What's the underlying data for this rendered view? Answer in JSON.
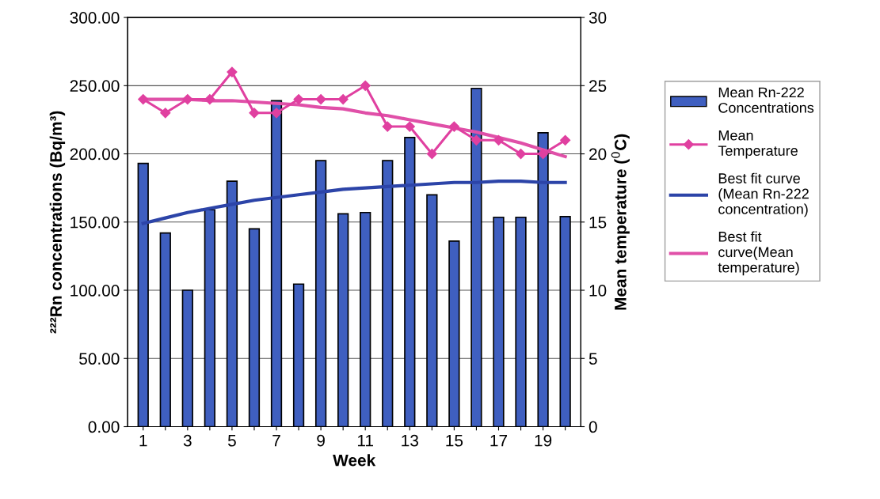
{
  "chart_data": {
    "type": "bar",
    "xlabel": "Week",
    "ylabel": "²²²Rn concentrations (Bq/m³)",
    "y2label": "Mean temperature ($^{0}$C)",
    "categories": [
      "1",
      null,
      "3",
      null,
      "5",
      null,
      "7",
      null,
      "9",
      null,
      "11",
      null,
      "13",
      null,
      "15",
      null,
      "17",
      null,
      "19",
      null
    ],
    "series": [
      {
        "name": "Mean Rn-222\nConcentrations",
        "color": "#3f5fc0",
        "values": [
          193,
          142,
          100,
          159,
          180,
          145,
          239,
          104.5,
          195,
          156,
          157,
          195,
          212,
          170,
          136,
          248,
          153.5,
          153.5,
          215.5,
          154
        ]
      },
      {
        "name": "Mean\nTemperature",
        "type": "line",
        "axis": "y2",
        "color": "#e040a0",
        "marker": "diamond",
        "values": [
          24,
          23,
          24,
          24,
          26,
          23,
          23,
          24,
          24,
          24,
          25,
          22,
          22,
          20,
          22,
          21,
          21,
          20,
          20,
          21
        ]
      },
      {
        "name": "Best fit curve\n(Mean Rn-222\nconcentration)",
        "type": "line",
        "color": "#2c44a8",
        "values": [
          149,
          153,
          157,
          160,
          163,
          166,
          168,
          170,
          172,
          174,
          175,
          176,
          177,
          178,
          179,
          179,
          180,
          180,
          179,
          179
        ]
      },
      {
        "name": "Best fit\ncurve(Mean\ntemperature)",
        "type": "line",
        "axis": "y2",
        "color": "#e050a8",
        "values": [
          24.0,
          24.0,
          24.0,
          23.9,
          23.9,
          23.8,
          23.7,
          23.6,
          23.4,
          23.3,
          23.0,
          22.8,
          22.5,
          22.2,
          21.9,
          21.6,
          21.2,
          20.8,
          20.3,
          19.8
        ]
      }
    ],
    "ylim": [
      0,
      300
    ],
    "yticks": [
      {
        "value": 0,
        "label": "0.00"
      },
      {
        "value": 50,
        "label": "50.00"
      },
      {
        "value": 100,
        "label": "100.00"
      },
      {
        "value": 150,
        "label": "150.00"
      },
      {
        "value": 200,
        "label": "200.00"
      },
      {
        "value": 250,
        "label": "250.00"
      },
      {
        "value": 300,
        "label": "300.00"
      }
    ],
    "y2lim": [
      0,
      30
    ],
    "y2ticks": [
      0,
      5,
      10,
      15,
      20,
      25,
      30
    ],
    "grid": "y",
    "legend": "right"
  }
}
